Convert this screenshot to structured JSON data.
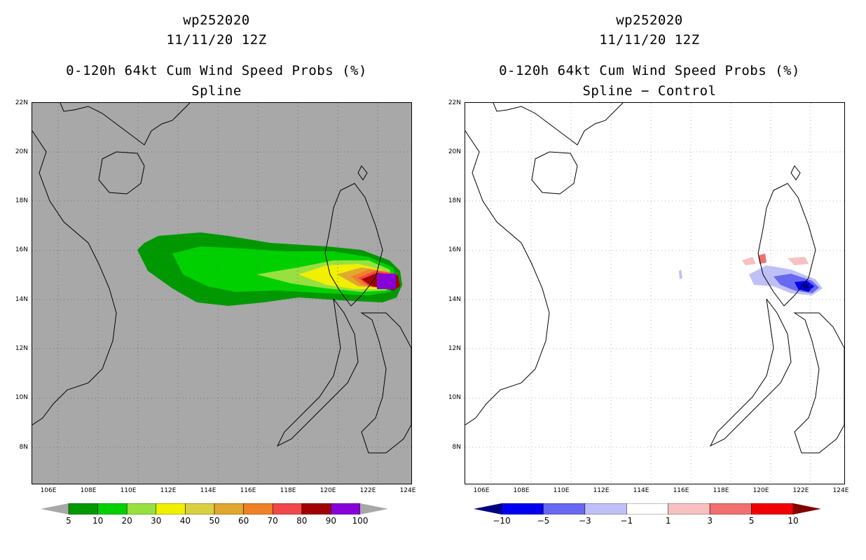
{
  "left": {
    "storm": "wp252020",
    "datetime": "11/11/20 12Z",
    "product": "0-120h 64kt Cum Wind Speed Probs (%)",
    "subtitle": "Spline",
    "colorbar": {
      "labels": [
        "5",
        "10",
        "20",
        "30",
        "40",
        "50",
        "60",
        "70",
        "80",
        "90",
        "100"
      ],
      "colors": [
        "#009800",
        "#00d000",
        "#98e040",
        "#f0f000",
        "#d8d040",
        "#e0a830",
        "#f08028",
        "#f04848",
        "#a00000",
        "#8800d8"
      ],
      "under": "#a8a8a8",
      "over": "#a8a8a8"
    }
  },
  "right": {
    "storm": "wp252020",
    "datetime": "11/11/20 12Z",
    "product": "0-120h 64kt Cum Wind Speed Probs (%)",
    "subtitle": "Spline − Control",
    "colorbar": {
      "labels": [
        "−10",
        "−5",
        "−3",
        "−1",
        "1",
        "3",
        "5",
        "10"
      ],
      "colors": [
        "#0000f0",
        "#6868f0",
        "#c0c0f8",
        "#ffffff",
        "#f8c0c0",
        "#f07070",
        "#f00000"
      ],
      "under": "#000080",
      "over": "#800000"
    }
  },
  "axes": {
    "lat_labels": [
      "22N",
      "20N",
      "18N",
      "16N",
      "14N",
      "12N",
      "10N",
      "8N"
    ],
    "lon_labels": [
      "106E",
      "108E",
      "110E",
      "112E",
      "114E",
      "116E",
      "118E",
      "120E",
      "122E",
      "124E"
    ],
    "lat_range": [
      6.5,
      22
    ],
    "lon_range": [
      105.5,
      124
    ]
  }
}
